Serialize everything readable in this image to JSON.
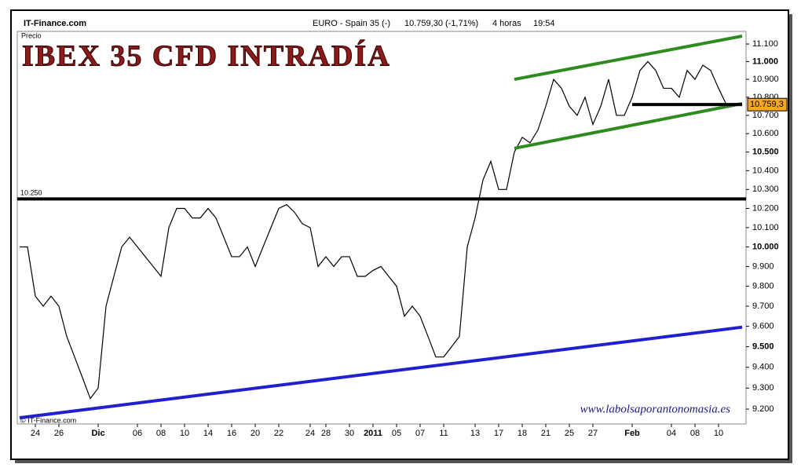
{
  "header": {
    "source": "IT-Finance.com",
    "instrument": "EURO - Spain 35 (-)",
    "quote": "10.759,30 (-1,71%)",
    "period": "4 horas",
    "time": "19:54"
  },
  "chart_data": {
    "type": "line",
    "title": "IBEX 35 CFD INTRADÍA",
    "y_label": "Precio",
    "watermark": "www.labolsaporantonomasia.es",
    "copyright": "© IT-Finance.com",
    "log_scale": true,
    "categories": [
      null,
      null,
      "24",
      null,
      null,
      "26",
      null,
      null,
      null,
      null,
      "Dic",
      null,
      null,
      null,
      null,
      "06",
      null,
      null,
      "08",
      null,
      null,
      "10",
      null,
      null,
      "14",
      null,
      null,
      "16",
      null,
      null,
      "20",
      null,
      null,
      "22",
      null,
      null,
      null,
      "24",
      null,
      "28",
      null,
      null,
      "30",
      null,
      null,
      "2011",
      null,
      null,
      "05",
      null,
      null,
      "07",
      null,
      null,
      "11",
      null,
      null,
      null,
      "13",
      null,
      null,
      "17",
      null,
      null,
      "18",
      null,
      null,
      "21",
      null,
      null,
      "25",
      null,
      null,
      "27",
      null,
      null,
      null,
      null,
      "Feb",
      null,
      null,
      null,
      null,
      "04",
      null,
      null,
      "08",
      null,
      null,
      "10",
      null
    ],
    "series": [
      {
        "name": "IBEX 35",
        "color": "#000000",
        "values": [
          10000,
          10000,
          9750,
          9700,
          9750,
          9700,
          9550,
          9450,
          9350,
          9250,
          9300,
          9700,
          9850,
          10000,
          10050,
          10000,
          9950,
          9900,
          9850,
          10100,
          10200,
          10200,
          10150,
          10150,
          10200,
          10150,
          10050,
          9950,
          9950,
          10000,
          9900,
          10000,
          10100,
          10200,
          10220,
          10180,
          10120,
          10100,
          9900,
          9950,
          9900,
          9950,
          9950,
          9850,
          9850,
          9880,
          9900,
          9850,
          9800,
          9650,
          9700,
          9650,
          9550,
          9450,
          9450,
          9500,
          9550,
          10000,
          10150,
          10350,
          10450,
          10300,
          10300,
          10500,
          10580,
          10550,
          10620,
          10750,
          10900,
          10850,
          10750,
          10700,
          10800,
          10650,
          10750,
          10900,
          10700,
          10700,
          10800,
          10950,
          11000,
          10950,
          10850,
          10850,
          10800,
          10950,
          10900,
          10980,
          10950,
          10850,
          10759.3
        ]
      }
    ],
    "last_price": {
      "value": 10759.3,
      "label": "10.759,3"
    },
    "level": {
      "value": 10250,
      "label": "10.250"
    },
    "trendlines": [
      {
        "color": "#2e8b1e",
        "points": [
          [
            63,
            10900
          ],
          [
            92,
            11145
          ]
        ]
      },
      {
        "color": "#2e8b1e",
        "points": [
          [
            63,
            10520
          ],
          [
            92,
            10765
          ]
        ]
      },
      {
        "color": "#2020d0",
        "points": [
          [
            0,
            9159
          ],
          [
            92,
            9596
          ]
        ]
      },
      {
        "color": "#000000",
        "points": [
          [
            78,
            10760
          ],
          [
            92,
            10760
          ]
        ]
      }
    ],
    "ylim": [
      9130,
      11172
    ],
    "yticks": [
      {
        "value": 9200,
        "label": "9.200"
      },
      {
        "value": 9300,
        "label": "9.300"
      },
      {
        "value": 9400,
        "label": "9.400"
      },
      {
        "value": 9500,
        "label": "9.500"
      },
      {
        "value": 9600,
        "label": "9.600"
      },
      {
        "value": 9700,
        "label": "9.700"
      },
      {
        "value": 9800,
        "label": "9.800"
      },
      {
        "value": 9900,
        "label": "9.900"
      },
      {
        "value": 10000,
        "label": "10.000"
      },
      {
        "value": 10100,
        "label": "10.100"
      },
      {
        "value": 10200,
        "label": "10.200"
      },
      {
        "value": 10300,
        "label": "10.300"
      },
      {
        "value": 10400,
        "label": "10.400"
      },
      {
        "value": 10500,
        "label": "10.500"
      },
      {
        "value": 10600,
        "label": "10.600"
      },
      {
        "value": 10700,
        "label": "10.700"
      },
      {
        "value": 10800,
        "label": "10.800"
      },
      {
        "value": 10900,
        "label": "10.900"
      },
      {
        "value": 11000,
        "label": "11.000"
      },
      {
        "value": 11100,
        "label": "11.100"
      }
    ]
  }
}
